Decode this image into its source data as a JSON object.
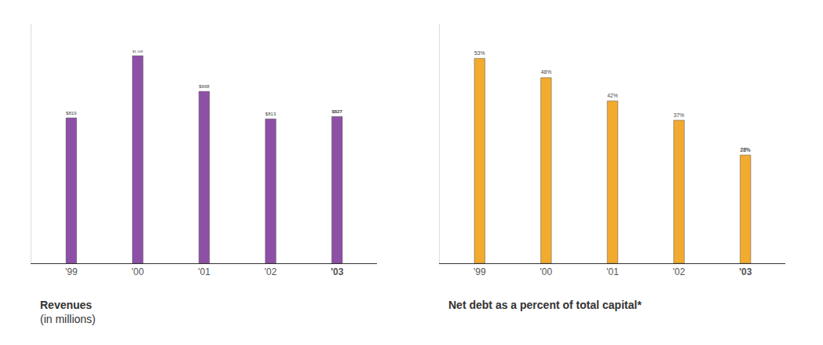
{
  "chart_data": [
    {
      "type": "bar",
      "title": "Revenues",
      "subtitle": "(in millions)",
      "categories": [
        "'99",
        "'00",
        "'01",
        "'02",
        "'03"
      ],
      "values": [
        819,
        1169,
        968,
        813,
        827
      ],
      "value_labels": [
        "$819",
        "$1,169",
        "$968",
        "$813",
        "$827"
      ],
      "color": "#8e4fa6",
      "ylim": [
        0,
        1350
      ],
      "tick_labels": "x",
      "data_labels": true,
      "grid": false
    },
    {
      "type": "bar",
      "title": "Net debt as a percent of total capital*",
      "categories": [
        "'99",
        "'00",
        "'01",
        "'02",
        "'03"
      ],
      "values": [
        53,
        48,
        42,
        37,
        28
      ],
      "value_labels": [
        "53%",
        "48%",
        "42%",
        "37%",
        "28%"
      ],
      "color": "#f2ab2e",
      "ylim": [
        0,
        62
      ],
      "tick_labels": "x",
      "data_labels": true,
      "grid": false
    }
  ]
}
